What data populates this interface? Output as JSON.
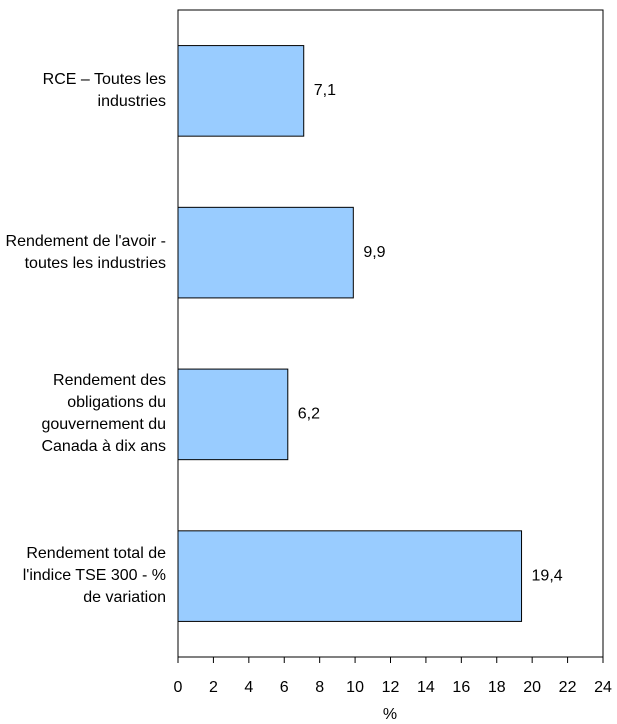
{
  "chart_data": {
    "type": "barh",
    "categories": [
      "RCE – Toutes les industries",
      "Rendement de l'avoir - toutes les industries",
      "Rendement des obligations du gouvernement du Canada à dix ans",
      "Rendement total de l'indice TSE 300 - % de variation"
    ],
    "values": [
      7.1,
      9.9,
      6.2,
      19.4
    ],
    "value_labels": [
      "7,1",
      "9,9",
      "6,2",
      "19,4"
    ],
    "color": "#99ccff",
    "xlabel": "%",
    "xlim": [
      0,
      24
    ],
    "xticks": [
      0,
      2,
      4,
      6,
      8,
      10,
      12,
      14,
      16,
      18,
      20,
      22,
      24
    ]
  }
}
